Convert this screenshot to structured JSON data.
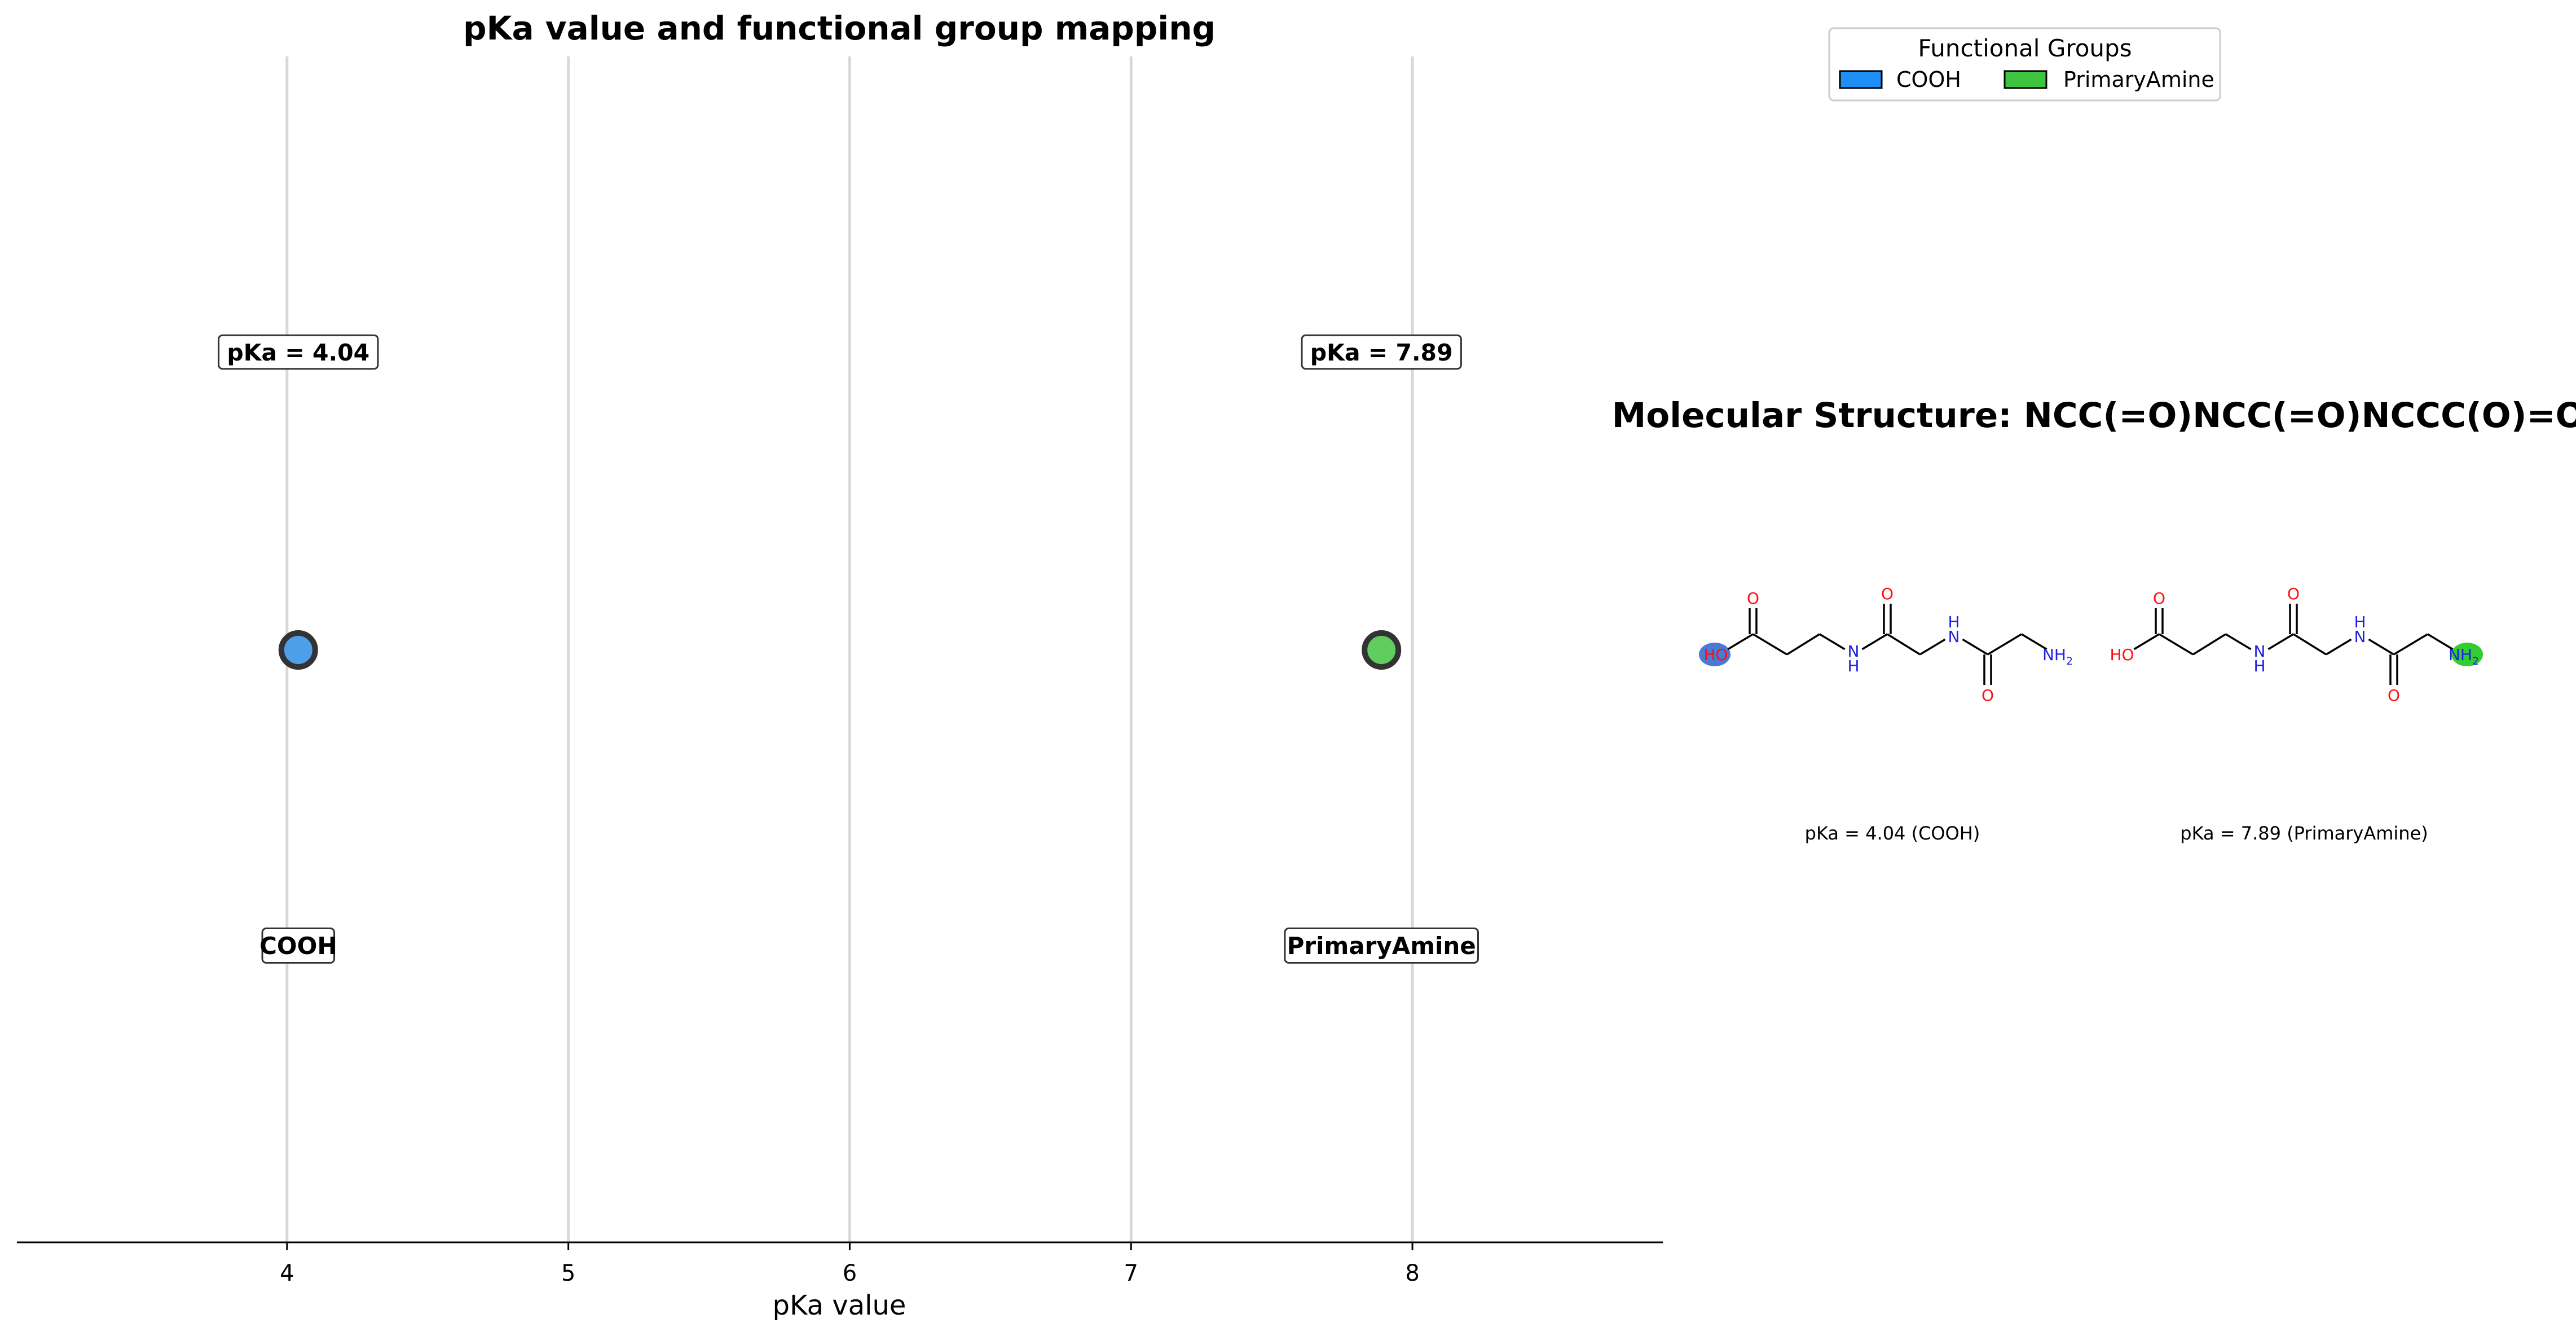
{
  "chart_data": [
    {
      "type": "scatter",
      "title": "pKa value and functional group mapping",
      "xlabel": "pKa value",
      "ylabel": "",
      "xlim": [
        3.04,
        8.89
      ],
      "xticks": [
        4,
        5,
        6,
        7,
        8
      ],
      "grid": "vertical lines at integer ticks",
      "points": [
        {
          "group": "COOH",
          "x": 4.04,
          "value_label": "pKa = 4.04",
          "group_label": "COOH",
          "color": "#4d9fea"
        },
        {
          "group": "PrimaryAmine",
          "x": 7.89,
          "value_label": "pKa = 7.89",
          "group_label": "PrimaryAmine",
          "color": "#5fce5f"
        }
      ]
    },
    {
      "type": "other",
      "title": "Molecular Structure: NCC(=O)NCC(=O)NCCC(O)=O",
      "panels": [
        {
          "caption": "pKa = 4.04 (COOH)",
          "highlight": "HO",
          "highlight_color": "#4d79d6"
        },
        {
          "caption": "pKa = 7.89 (PrimaryAmine)",
          "highlight": "NH2",
          "highlight_color": "#33cc33"
        }
      ]
    }
  ],
  "legend": {
    "title": "Functional Groups",
    "placement": "top-right",
    "entries": [
      {
        "label": "COOH",
        "color": "#1f8ff5"
      },
      {
        "label": "PrimaryAmine",
        "color": "#3ec43e"
      }
    ]
  },
  "molecule_atoms": {
    "oxygen": "O",
    "hydroxyl": "HO",
    "nitrogen_h": "H",
    "nitrogen": "N",
    "amine_n": "NH",
    "amine_sub": "2"
  },
  "colors": {
    "oxygen": "#ff0d0d",
    "nitrogen": "#1f1fe6",
    "bond": "#000000",
    "grid": "#d8d8d8",
    "marker_edge": "#333333"
  }
}
